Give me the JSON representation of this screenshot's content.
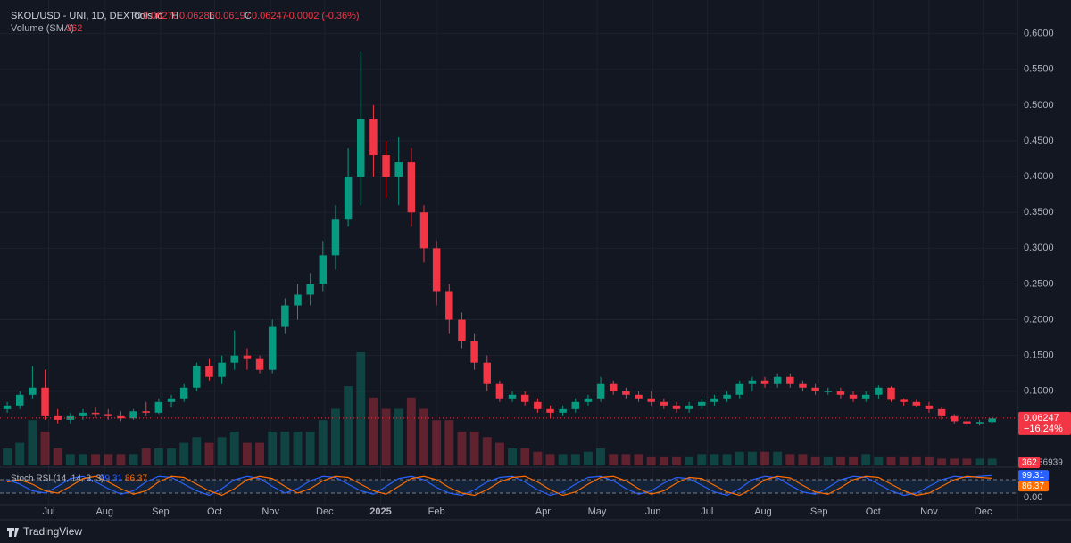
{
  "header": {
    "symbol": "SKOL/USD - UNI, 1D, DEXTools.io",
    "o_label": "O",
    "o": "0.06270",
    "h_label": "H",
    "h": "0.06286",
    "l_label": "L",
    "l": "0.06197",
    "c_label": "C",
    "c": "0.06247",
    "change": "-0.0002 (-0.36%)",
    "volume_label": "Volume (SMA)",
    "volume_value": "362",
    "stoch_label": "Stoch RSI (14, 14, 3, 3)"
  },
  "chart_data": {
    "type": "candlestick",
    "x": [
      0,
      7,
      14,
      21,
      28,
      35,
      42,
      49,
      56,
      63,
      70,
      77,
      84,
      91,
      98,
      105,
      112,
      119,
      126,
      133,
      140,
      147,
      154,
      161,
      168,
      175,
      182,
      189,
      196,
      203,
      210,
      217,
      224,
      231,
      238,
      245,
      252,
      259,
      266,
      273,
      280,
      287,
      294,
      301,
      308,
      315,
      322,
      329,
      336,
      343,
      350,
      357,
      364,
      371,
      378,
      385,
      392,
      399,
      406,
      413,
      420,
      427,
      434,
      441,
      448,
      455,
      462,
      469,
      476,
      483,
      490,
      497,
      504,
      511,
      518,
      525,
      532,
      539,
      546
    ],
    "open": [
      0.075,
      0.08,
      0.095,
      0.105,
      0.065,
      0.06,
      0.065,
      0.07,
      0.068,
      0.065,
      0.062,
      0.072,
      0.07,
      0.085,
      0.09,
      0.105,
      0.135,
      0.12,
      0.14,
      0.15,
      0.145,
      0.13,
      0.19,
      0.22,
      0.235,
      0.25,
      0.29,
      0.34,
      0.4,
      0.48,
      0.43,
      0.4,
      0.42,
      0.35,
      0.3,
      0.24,
      0.2,
      0.17,
      0.14,
      0.11,
      0.09,
      0.095,
      0.085,
      0.075,
      0.07,
      0.075,
      0.085,
      0.09,
      0.11,
      0.1,
      0.095,
      0.09,
      0.085,
      0.08,
      0.075,
      0.08,
      0.085,
      0.09,
      0.095,
      0.11,
      0.115,
      0.11,
      0.12,
      0.11,
      0.105,
      0.1,
      0.1,
      0.095,
      0.09,
      0.095,
      0.105,
      0.088,
      0.085,
      0.08,
      0.075,
      0.065,
      0.058,
      0.055,
      0.057
    ],
    "high": [
      0.085,
      0.1,
      0.135,
      0.13,
      0.075,
      0.07,
      0.075,
      0.078,
      0.075,
      0.072,
      0.075,
      0.085,
      0.09,
      0.095,
      0.11,
      0.14,
      0.145,
      0.15,
      0.185,
      0.16,
      0.15,
      0.2,
      0.23,
      0.25,
      0.265,
      0.31,
      0.36,
      0.44,
      0.575,
      0.5,
      0.45,
      0.455,
      0.44,
      0.36,
      0.31,
      0.25,
      0.21,
      0.18,
      0.15,
      0.115,
      0.1,
      0.1,
      0.09,
      0.08,
      0.08,
      0.09,
      0.095,
      0.12,
      0.115,
      0.105,
      0.1,
      0.1,
      0.09,
      0.085,
      0.085,
      0.09,
      0.095,
      0.1,
      0.115,
      0.12,
      0.12,
      0.125,
      0.125,
      0.115,
      0.11,
      0.105,
      0.105,
      0.1,
      0.1,
      0.108,
      0.107,
      0.09,
      0.088,
      0.085,
      0.078,
      0.068,
      0.062,
      0.06,
      0.065
    ],
    "low": [
      0.07,
      0.075,
      0.09,
      0.06,
      0.055,
      0.055,
      0.06,
      0.063,
      0.06,
      0.058,
      0.06,
      0.065,
      0.068,
      0.078,
      0.085,
      0.1,
      0.115,
      0.11,
      0.13,
      0.13,
      0.125,
      0.125,
      0.18,
      0.2,
      0.22,
      0.24,
      0.27,
      0.33,
      0.36,
      0.4,
      0.37,
      0.36,
      0.33,
      0.28,
      0.22,
      0.18,
      0.16,
      0.13,
      0.1,
      0.085,
      0.085,
      0.08,
      0.07,
      0.062,
      0.065,
      0.07,
      0.08,
      0.085,
      0.095,
      0.09,
      0.085,
      0.08,
      0.075,
      0.07,
      0.07,
      0.075,
      0.08,
      0.085,
      0.09,
      0.1,
      0.105,
      0.105,
      0.105,
      0.1,
      0.095,
      0.095,
      0.09,
      0.085,
      0.085,
      0.09,
      0.085,
      0.08,
      0.078,
      0.07,
      0.06,
      0.055,
      0.052,
      0.052,
      0.055
    ],
    "close": [
      0.08,
      0.095,
      0.105,
      0.065,
      0.06,
      0.065,
      0.07,
      0.068,
      0.065,
      0.062,
      0.072,
      0.07,
      0.085,
      0.09,
      0.105,
      0.135,
      0.12,
      0.14,
      0.15,
      0.145,
      0.13,
      0.19,
      0.22,
      0.235,
      0.25,
      0.29,
      0.34,
      0.4,
      0.48,
      0.43,
      0.4,
      0.42,
      0.35,
      0.3,
      0.24,
      0.2,
      0.17,
      0.14,
      0.11,
      0.09,
      0.095,
      0.085,
      0.075,
      0.07,
      0.075,
      0.085,
      0.09,
      0.11,
      0.1,
      0.095,
      0.09,
      0.085,
      0.08,
      0.075,
      0.08,
      0.085,
      0.09,
      0.095,
      0.11,
      0.115,
      0.11,
      0.12,
      0.11,
      0.105,
      0.1,
      0.1,
      0.095,
      0.09,
      0.095,
      0.105,
      0.088,
      0.085,
      0.08,
      0.075,
      0.065,
      0.058,
      0.055,
      0.057,
      0.062
    ],
    "volume": [
      1.5,
      2,
      4,
      3,
      1.5,
      1,
      1,
      1,
      1,
      1,
      1,
      1.5,
      1.5,
      1.5,
      2,
      2.5,
      2,
      2.5,
      3,
      2,
      2,
      3,
      3,
      3,
      3,
      4,
      5,
      7,
      10,
      6,
      5,
      5,
      6,
      5,
      4,
      4,
      3,
      3,
      2.5,
      2,
      1.5,
      1.5,
      1.2,
      1,
      1,
      1,
      1.2,
      1.5,
      1,
      1,
      1,
      0.8,
      0.8,
      0.8,
      0.8,
      1,
      1,
      1,
      1.2,
      1.2,
      1.2,
      1.2,
      1,
      1,
      0.8,
      0.8,
      0.8,
      0.8,
      1,
      0.8,
      0.8,
      0.8,
      0.8,
      0.8,
      0.6,
      0.6,
      0.6,
      0.6,
      0.6
    ],
    "vlim": [
      0,
      10
    ],
    "volume_scale_label": "36939",
    "up_color": "#089981",
    "down_color": "#f23645",
    "xlim": [
      -4,
      560
    ],
    "ylim": [
      0,
      0.637
    ],
    "xticks": [
      {
        "value": 23,
        "label": "Jul"
      },
      {
        "value": 54,
        "label": "Aug"
      },
      {
        "value": 85,
        "label": "Sep"
      },
      {
        "value": 115,
        "label": "Oct"
      },
      {
        "value": 146,
        "label": "Nov"
      },
      {
        "value": 176,
        "label": "Dec"
      },
      {
        "value": 207,
        "label": "2025"
      },
      {
        "value": 238,
        "label": "Feb"
      },
      {
        "value": 297,
        "label": "Apr"
      },
      {
        "value": 327,
        "label": "May"
      },
      {
        "value": 358,
        "label": "Jun"
      },
      {
        "value": 388,
        "label": "Jul"
      },
      {
        "value": 419,
        "label": "Aug"
      },
      {
        "value": 450,
        "label": "Sep"
      },
      {
        "value": 480,
        "label": "Oct"
      },
      {
        "value": 511,
        "label": "Nov"
      },
      {
        "value": 541,
        "label": "Dec"
      }
    ],
    "yticks": [
      {
        "value": 0.1,
        "label": "0.1000"
      },
      {
        "value": 0.15,
        "label": "0.1500"
      },
      {
        "value": 0.2,
        "label": "0.2000"
      },
      {
        "value": 0.25,
        "label": "0.2500"
      },
      {
        "value": 0.3,
        "label": "0.3000"
      },
      {
        "value": 0.35,
        "label": "0.3500"
      },
      {
        "value": 0.4,
        "label": "0.4000"
      },
      {
        "value": 0.45,
        "label": "0.4500"
      },
      {
        "value": 0.5,
        "label": "0.5000"
      },
      {
        "value": 0.55,
        "label": "0.5500"
      },
      {
        "value": 0.6,
        "label": "0.6000"
      }
    ],
    "grid": true,
    "last_price": {
      "value": 0.06247,
      "label": "0.06247"
    },
    "last_change": "−16.24%",
    "stoch": {
      "ylim": [
        0,
        100
      ],
      "yticks": [
        {
          "value": 0,
          "label": "0.00"
        }
      ],
      "bands": [
        20,
        80
      ],
      "series": [
        {
          "color": "#2962ff",
          "values": [
            80,
            60,
            30,
            20,
            50,
            85,
            95,
            70,
            40,
            15,
            30,
            70,
            95,
            90,
            60,
            30,
            10,
            40,
            80,
            95,
            85,
            50,
            20,
            40,
            75,
            95,
            90,
            60,
            30,
            15,
            50,
            85,
            95,
            80,
            45,
            20,
            10,
            35,
            70,
            90,
            95,
            70,
            35,
            10,
            25,
            60,
            90,
            95,
            75,
            40,
            15,
            30,
            65,
            90,
            85,
            55,
            25,
            10,
            40,
            80,
            95,
            88,
            55,
            25,
            15,
            45,
            80,
            95,
            90,
            60,
            30,
            10,
            20,
            50,
            80,
            95,
            90,
            95,
            99.31
          ]
        },
        {
          "color": "#ff6d00",
          "values": [
            70,
            80,
            60,
            30,
            20,
            50,
            85,
            95,
            70,
            40,
            15,
            30,
            70,
            95,
            90,
            60,
            30,
            10,
            40,
            80,
            95,
            85,
            50,
            20,
            40,
            75,
            95,
            90,
            60,
            30,
            15,
            50,
            85,
            95,
            80,
            45,
            20,
            10,
            35,
            70,
            90,
            95,
            70,
            35,
            10,
            25,
            60,
            90,
            95,
            75,
            40,
            15,
            30,
            65,
            90,
            85,
            55,
            25,
            10,
            40,
            80,
            95,
            88,
            55,
            25,
            15,
            45,
            80,
            95,
            90,
            60,
            30,
            10,
            20,
            50,
            80,
            95,
            90,
            86.37
          ]
        }
      ]
    }
  },
  "footer": {
    "brand": "TradingView"
  }
}
